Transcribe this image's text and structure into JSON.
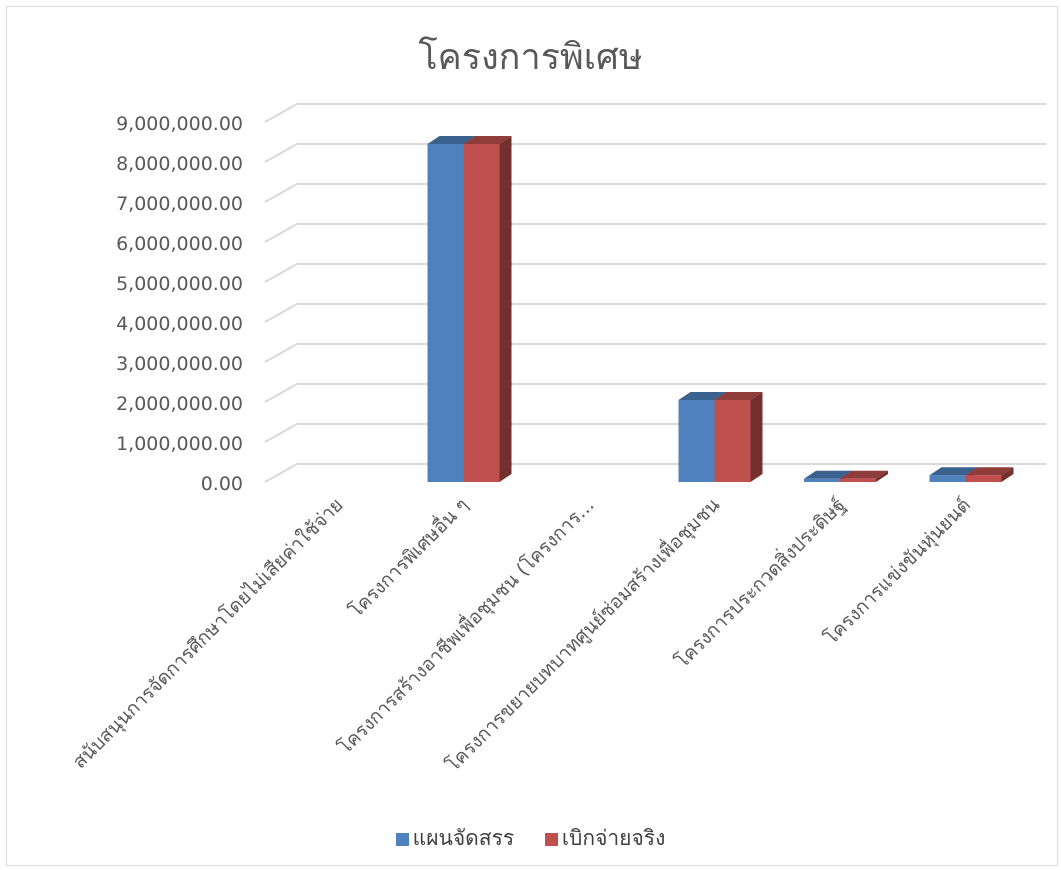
{
  "chart_data": {
    "type": "bar",
    "title": "โครงการพิเศษ",
    "xlabel": "",
    "ylabel": "",
    "ylim": [
      0,
      9000000
    ],
    "y_ticks": [
      "0.00",
      "1,000,000.00",
      "2,000,000.00",
      "3,000,000.00",
      "4,000,000.00",
      "5,000,000.00",
      "6,000,000.00",
      "7,000,000.00",
      "8,000,000.00",
      "9,000,000.00"
    ],
    "grid": true,
    "legend_position": "bottom",
    "categories": [
      "สนับสนุนการจัดการศึกษาโดยไม่เสียค่าใช้จ่าย",
      "โครงการพิเศษอื่น ๆ",
      "โครงการสร้างอาชีพเพื่อชุมชน (โครงการ...",
      "โครงการขยายบทบาทศูนย์ซ่อมสร้างเพื่อชุมชน",
      "โครงการประกวดสิ่งประดิษฐ์",
      "โครงการแข่งขันหุ่นยนต์"
    ],
    "series": [
      {
        "name": "แผนจัดสรร",
        "color": "#4f81bd",
        "values": [
          0,
          8450000,
          0,
          2050000,
          80000,
          170000
        ]
      },
      {
        "name": "เบิกจ่ายจริง",
        "color": "#c0504d",
        "values": [
          0,
          8450000,
          0,
          2050000,
          80000,
          170000
        ]
      }
    ]
  }
}
